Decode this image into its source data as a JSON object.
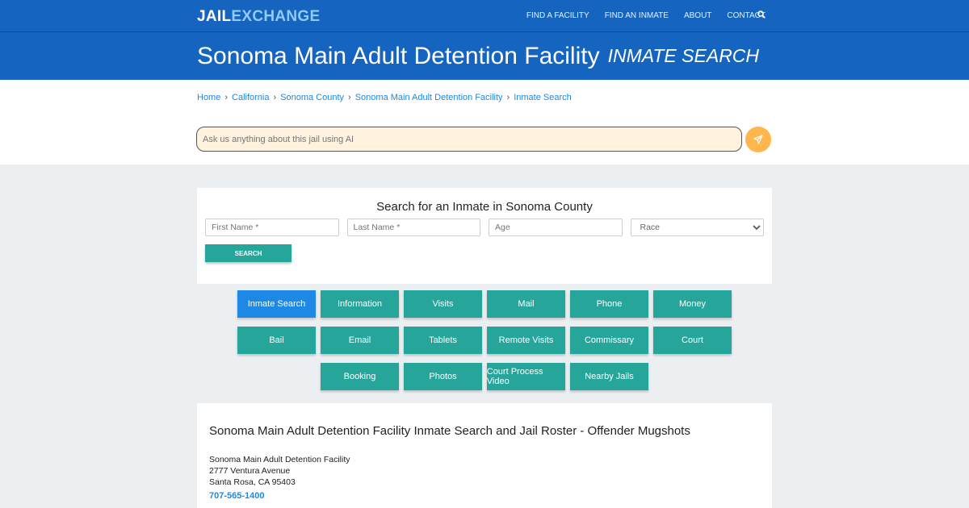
{
  "header": {
    "logo_part1": "JAIL",
    "logo_part2": "EXCHANGE",
    "menu": [
      "FIND A FACILITY",
      "FIND AN INMATE",
      "ABOUT",
      "CONTACT"
    ]
  },
  "title": {
    "main": "Sonoma Main Adult Detention Facility",
    "sub": "INMATE SEARCH"
  },
  "breadcrumb": [
    "Home",
    "California",
    "Sonoma County",
    "Sonoma Main Adult Detention Facility",
    "Inmate Search"
  ],
  "ai": {
    "placeholder": "Ask us anything about this jail using AI"
  },
  "search": {
    "title": "Search for an Inmate in Sonoma County",
    "first_placeholder": "First Name *",
    "last_placeholder": "Last Name *",
    "age_placeholder": "Age",
    "race_selected": "Race",
    "button": "SEARCH"
  },
  "tabs": [
    "Inmate Search",
    "Information",
    "Visits",
    "Mail",
    "Phone",
    "Money",
    "Bail",
    "Email",
    "Tablets",
    "Remote Visits",
    "Commissary",
    "Court",
    "Booking",
    "Photos",
    "Court Process Video",
    "Nearby Jails"
  ],
  "info": {
    "heading": "Sonoma Main Adult Detention Facility Inmate Search and Jail Roster - Offender Mugshots",
    "name": "Sonoma Main Adult Detention Facility",
    "street": "2777 Ventura Avenue",
    "city": "Santa Rosa, CA 95403",
    "phone": "707-565-1400"
  },
  "colors": {
    "primary": "#1565c0",
    "teal": "#26a69a",
    "active": "#1e88e5",
    "send": "#ffb74d"
  }
}
